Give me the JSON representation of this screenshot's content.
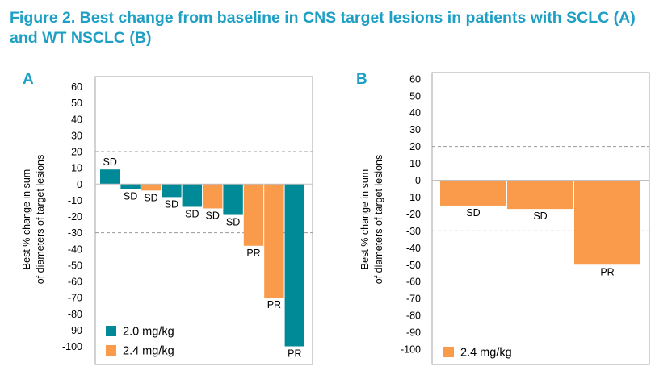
{
  "figure": {
    "title": "Figure 2. Best change from baseline in CNS target lesions in patients with SCLC (A) and WT NSCLC (B)"
  },
  "colors": {
    "teal": "#008996",
    "orange": "#fa9a4b",
    "title": "#1e9fc4",
    "dashed": "#999999"
  },
  "chart_data": [
    {
      "type": "bar",
      "panel": "A",
      "ylabel": "Best % change in sum of diameters of target lesions",
      "xlabel": "",
      "ylim": [
        -105,
        65
      ],
      "yticks": [
        60,
        50,
        40,
        30,
        20,
        10,
        0,
        -10,
        -20,
        -30,
        -40,
        -50,
        -60,
        -70,
        -80,
        -90,
        -100
      ],
      "reference_lines": [
        20,
        -30
      ],
      "legend": [
        {
          "label": "2.0 mg/kg",
          "color": "#008996"
        },
        {
          "label": "2.4 mg/kg",
          "color": "#fa9a4b"
        }
      ],
      "bars": [
        {
          "value": 9,
          "label": "SD",
          "dose": "2.0 mg/kg"
        },
        {
          "value": -3,
          "label": "SD",
          "dose": "2.0 mg/kg"
        },
        {
          "value": -4,
          "label": "SD",
          "dose": "2.4 mg/kg"
        },
        {
          "value": -8,
          "label": "SD",
          "dose": "2.0 mg/kg"
        },
        {
          "value": -14,
          "label": "SD",
          "dose": "2.0 mg/kg"
        },
        {
          "value": -15,
          "label": "SD",
          "dose": "2.4 mg/kg"
        },
        {
          "value": -19,
          "label": "SD",
          "dose": "2.0 mg/kg"
        },
        {
          "value": -38,
          "label": "PR",
          "dose": "2.4 mg/kg"
        },
        {
          "value": -70,
          "label": "PR",
          "dose": "2.4 mg/kg"
        },
        {
          "value": -100,
          "label": "PR",
          "dose": "2.0 mg/kg"
        }
      ]
    },
    {
      "type": "bar",
      "panel": "B",
      "ylabel": "Best % change in sum of diameters of target lesions",
      "xlabel": "",
      "ylim": [
        -105,
        63
      ],
      "yticks": [
        60,
        50,
        40,
        30,
        20,
        10,
        0,
        -10,
        -20,
        -30,
        -40,
        -50,
        -60,
        -70,
        -80,
        -90,
        -100
      ],
      "reference_lines": [
        20,
        -30
      ],
      "legend": [
        {
          "label": "2.4 mg/kg",
          "color": "#fa9a4b"
        }
      ],
      "bars": [
        {
          "value": -15,
          "label": "SD",
          "dose": "2.4 mg/kg"
        },
        {
          "value": -17,
          "label": "SD",
          "dose": "2.4 mg/kg"
        },
        {
          "value": -50,
          "label": "PR",
          "dose": "2.4 mg/kg"
        }
      ]
    }
  ]
}
